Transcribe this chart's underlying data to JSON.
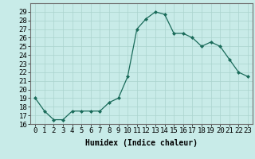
{
  "x": [
    0,
    1,
    2,
    3,
    4,
    5,
    6,
    7,
    8,
    9,
    10,
    11,
    12,
    13,
    14,
    15,
    16,
    17,
    18,
    19,
    20,
    21,
    22,
    23
  ],
  "y": [
    19,
    17.5,
    16.5,
    16.5,
    17.5,
    17.5,
    17.5,
    17.5,
    18.5,
    19,
    21.5,
    27,
    28.2,
    29,
    28.7,
    26.5,
    26.5,
    26,
    25,
    25.5,
    25,
    23.5,
    22,
    21.5
  ],
  "line_color": "#1a6b5a",
  "marker": "D",
  "marker_size": 2.0,
  "bg_color": "#c8ebe8",
  "grid_color_major": "#aad4ce",
  "grid_color_minor": "#c0e0db",
  "xlabel": "Humidex (Indice chaleur)",
  "ylim": [
    16,
    30
  ],
  "xlim": [
    -0.5,
    23.5
  ],
  "yticks": [
    16,
    17,
    18,
    19,
    20,
    21,
    22,
    23,
    24,
    25,
    26,
    27,
    28,
    29
  ],
  "xticks": [
    0,
    1,
    2,
    3,
    4,
    5,
    6,
    7,
    8,
    9,
    10,
    11,
    12,
    13,
    14,
    15,
    16,
    17,
    18,
    19,
    20,
    21,
    22,
    23
  ],
  "label_fontsize": 7,
  "tick_fontsize": 6.5,
  "figsize": [
    3.2,
    2.0
  ],
  "dpi": 100
}
